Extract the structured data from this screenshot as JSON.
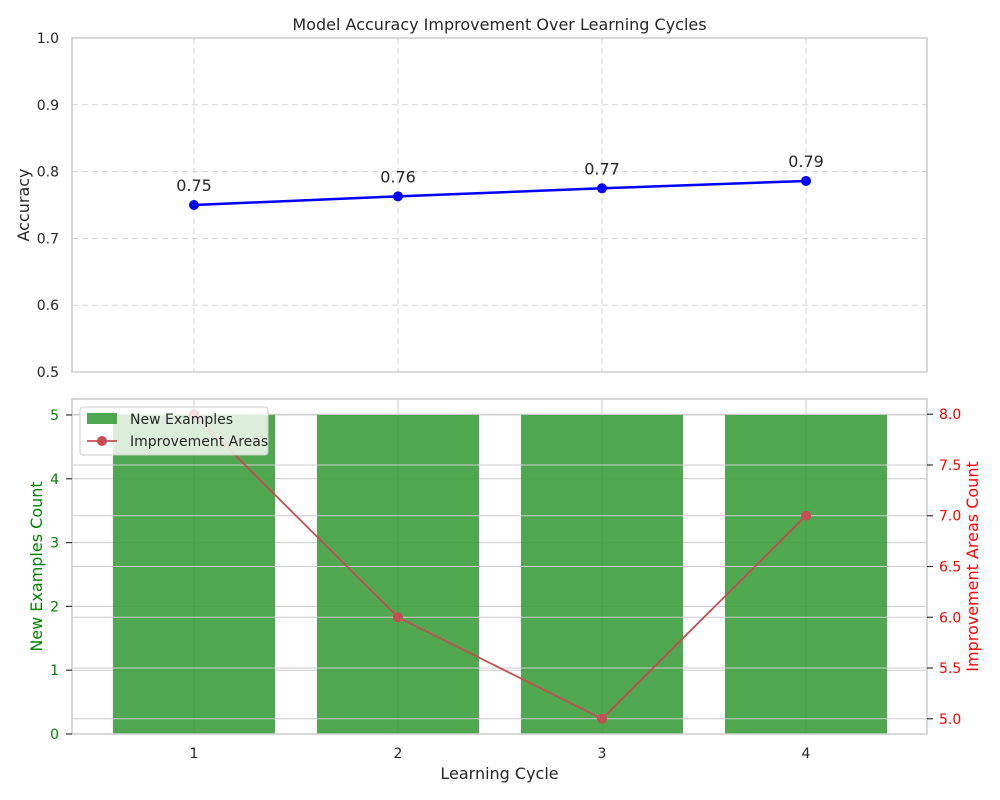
{
  "chart_data": [
    {
      "type": "line",
      "title": "Model Accuracy Improvement Over Learning Cycles",
      "xlabel": "",
      "ylabel": "Accuracy",
      "x": [
        1,
        2,
        3,
        4
      ],
      "xticks": [
        "1",
        "2",
        "3",
        "4"
      ],
      "ylim": [
        0.5,
        1.0
      ],
      "yticks": [
        "0.5",
        "0.6",
        "0.7",
        "0.8",
        "0.9",
        "1.0"
      ],
      "grid": true,
      "series": [
        {
          "values": [
            0.75,
            0.763,
            0.775,
            0.786
          ],
          "data_labels": [
            "0.75",
            "0.76",
            "0.77",
            "0.79"
          ],
          "color": "#0000ff"
        }
      ]
    },
    {
      "type": "bar",
      "title": "",
      "xlabel": "Learning Cycle",
      "ylabel": "New Examples Count",
      "ylabel_right": "Improvement Areas Count",
      "x": [
        1,
        2,
        3,
        4
      ],
      "xticks": [
        "1",
        "2",
        "3",
        "4"
      ],
      "ylim": [
        0,
        5.25
      ],
      "ylim_right": [
        4.85,
        8.15
      ],
      "yticks": [
        "0",
        "1",
        "2",
        "3",
        "4",
        "5"
      ],
      "yticks_right": [
        "5.0",
        "5.5",
        "6.0",
        "6.5",
        "7.0",
        "7.5",
        "8.0"
      ],
      "legend_position": "top-left",
      "grid": true,
      "series": [
        {
          "name": "New Examples",
          "type": "bar",
          "axis": "left",
          "values": [
            5,
            5,
            5,
            5
          ],
          "color": "#3c9d3c"
        },
        {
          "name": "Improvement Areas",
          "type": "line",
          "axis": "right",
          "values": [
            8,
            6,
            5,
            7
          ],
          "color": "#c44e52"
        }
      ],
      "left_axis_color": "#008000",
      "right_axis_color": "#ff0000"
    }
  ]
}
